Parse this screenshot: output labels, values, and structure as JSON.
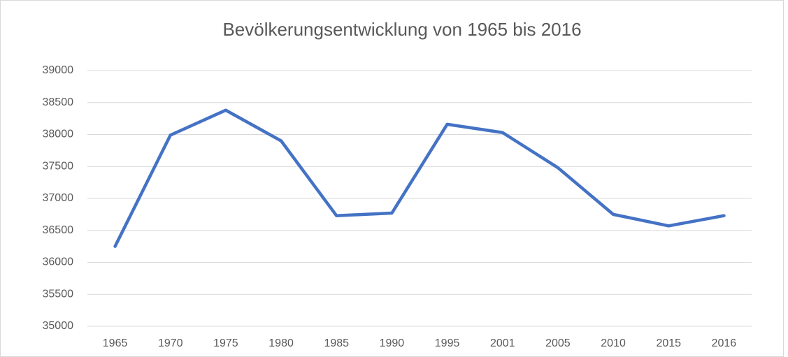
{
  "chart_data": {
    "type": "line",
    "title": "Bevölkerungsentwicklung von 1965 bis 2016",
    "categories": [
      "1965",
      "1970",
      "1975",
      "1980",
      "1985",
      "1990",
      "1995",
      "2001",
      "2005",
      "2010",
      "2015",
      "2016"
    ],
    "values": [
      36250,
      37990,
      38380,
      37900,
      36730,
      36770,
      38160,
      38030,
      37480,
      36750,
      36570,
      36730
    ],
    "color": "#4472c4",
    "ylim": [
      35000,
      39000
    ],
    "yticks": [
      35000,
      35500,
      36000,
      36500,
      37000,
      37500,
      38000,
      38500,
      39000
    ],
    "grid": true
  }
}
